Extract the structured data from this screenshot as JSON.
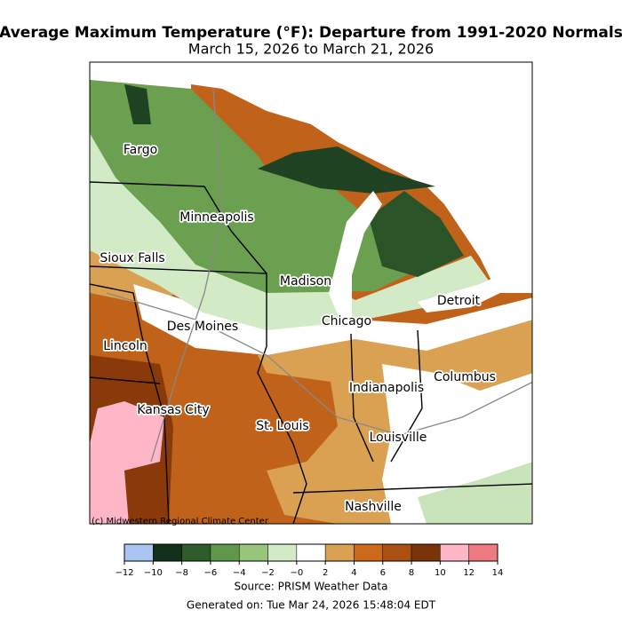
{
  "header": {
    "title": "Average Maximum Temperature (°F): Departure from 1991-2020 Normals",
    "subtitle": "March 15, 2026 to March 21, 2026"
  },
  "map": {
    "cities": [
      "Fargo",
      "Minneapolis",
      "Sioux Falls",
      "Madison",
      "Detroit",
      "Chicago",
      "Des Moines",
      "Lincoln",
      "Columbus",
      "Indianapolis",
      "Kansas City",
      "St. Louis",
      "Louisville",
      "Nashville"
    ],
    "credit": "(c) Midwestern Regional Climate Center"
  },
  "colorbar": {
    "colors": [
      "#a9c6f2",
      "#13301a",
      "#2f5c2b",
      "#5f984a",
      "#98c57c",
      "#d3eac7",
      "#ffffff",
      "#dba152",
      "#cc6a1c",
      "#a94f12",
      "#7b3309",
      "#ffb7c8",
      "#ee7b82"
    ],
    "ticks": [
      {
        "value": -12,
        "label": "−12"
      },
      {
        "value": -10,
        "label": "−10"
      },
      {
        "value": -8,
        "label": "−8"
      },
      {
        "value": -6,
        "label": "−6"
      },
      {
        "value": -4,
        "label": "−4"
      },
      {
        "value": -2,
        "label": "−2"
      },
      {
        "value": 0,
        "label": "−0"
      },
      2,
      4,
      6,
      8,
      10,
      12,
      14
    ]
  },
  "footer": {
    "source": "Source: PRISM Weather Data",
    "generated": "Generated on: Tue Mar 24, 2026 15:48:04 EDT"
  }
}
